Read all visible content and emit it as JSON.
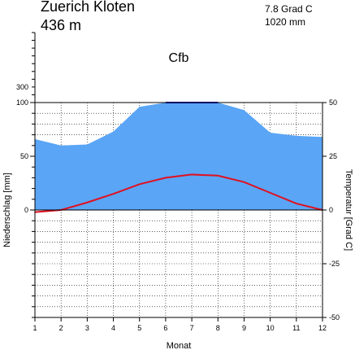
{
  "header": {
    "station": "Zuerich Kloten",
    "elevation": "436 m",
    "mean_temperature": "7.8 Grad C",
    "annual_precipitation": "1020 mm",
    "climate_class": "Cfb"
  },
  "chart_data": {
    "type": "area",
    "xlabel": "Monat",
    "ylabel_left": "Niederschlag [mm]",
    "ylabel_right": "Temperatur [Grad C]",
    "categories": [
      "1",
      "2",
      "3",
      "4",
      "5",
      "6",
      "7",
      "8",
      "9",
      "10",
      "11",
      "12"
    ],
    "precipitation_ylim": [
      -100,
      100
    ],
    "precipitation_ticks": [
      "100",
      "50",
      "0"
    ],
    "precipitation_high_ticks": [
      "300"
    ],
    "temperature_ylim": [
      -50,
      50
    ],
    "temperature_ticks": [
      "50",
      "25",
      "0",
      "-25",
      "-50"
    ],
    "grid": true,
    "series": [
      {
        "key": "precipitation",
        "values": [
          66,
          60,
          61,
          73,
          96,
          101,
          101,
          101,
          93,
          72,
          69,
          68
        ],
        "color": "#5aa5f5"
      },
      {
        "key": "temperature",
        "values": [
          -1.0,
          0.0,
          3.5,
          7.5,
          12.0,
          15.0,
          16.5,
          16.0,
          13.0,
          8.0,
          3.0,
          0.0
        ],
        "color": "#e01020"
      }
    ],
    "excess_band_color": "#1010c0"
  }
}
